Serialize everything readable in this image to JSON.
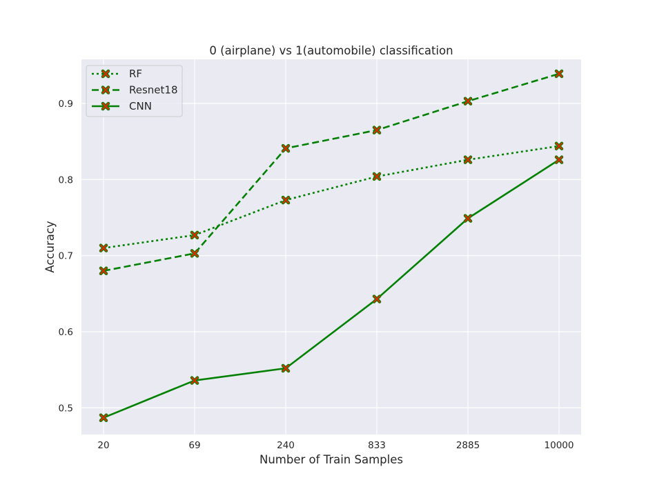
{
  "chart_data": {
    "type": "line",
    "title": "0 (airplane) vs 1(automobile) classification",
    "xlabel": "Number of Train Samples",
    "ylabel": "Accuracy",
    "categories": [
      "20",
      "69",
      "240",
      "833",
      "2885",
      "10000"
    ],
    "yticks": [
      "0.5",
      "0.6",
      "0.7",
      "0.8",
      "0.9"
    ],
    "ylim": [
      0.465,
      0.958
    ],
    "grid": true,
    "legend_position": "top-left",
    "marker": "x",
    "marker_color": "#cc3300",
    "line_color": "#008000",
    "background": "#eaeaf2",
    "series": [
      {
        "name": "RF",
        "style": "dotted",
        "values": [
          0.71,
          0.727,
          0.773,
          0.804,
          0.826,
          0.844
        ]
      },
      {
        "name": "Resnet18",
        "style": "dashed",
        "values": [
          0.68,
          0.703,
          0.841,
          0.865,
          0.903,
          0.939
        ]
      },
      {
        "name": "CNN",
        "style": "solid",
        "values": [
          0.487,
          0.536,
          0.552,
          0.643,
          0.749,
          0.826
        ]
      }
    ]
  }
}
